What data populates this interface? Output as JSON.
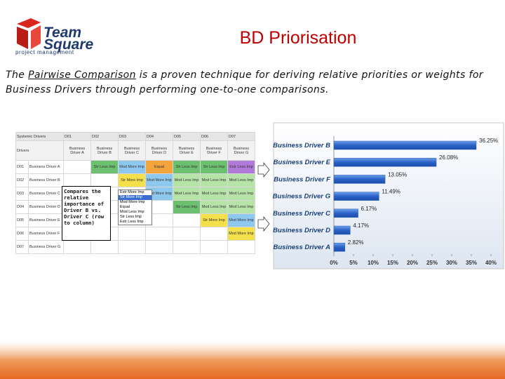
{
  "logo": {
    "line1": "Team",
    "line2": "Square",
    "tagline": "project management"
  },
  "title": "BD Priorisation",
  "intro": {
    "before": "The ",
    "link": "Pairwise Comparison",
    "after": " is a proven technique for deriving relative priorities or weights for Business Drivers through performing one-to-one comparisons."
  },
  "matrix": {
    "corner": "Systemic Drivers",
    "row_header": "Drivers",
    "codes": [
      "D01",
      "D02",
      "D03",
      "D04",
      "D05",
      "D06",
      "D07"
    ],
    "drivers": [
      "Business Driver A",
      "Business Driver B",
      "Business Driver C",
      "Business Driver D",
      "Business Driver E",
      "Business Driver F",
      "Business Driver G"
    ],
    "cells": [
      [
        null,
        {
          "text": "Str Less Imp",
          "color": "#6cc070"
        },
        {
          "text": "Mod More Imp",
          "color": "#8fc8ee"
        },
        {
          "text": "Equal",
          "color": "#f4a43c"
        },
        {
          "text": "Str Less Imp",
          "color": "#6cc070"
        },
        {
          "text": "Str Less Imp",
          "color": "#6cc070"
        },
        {
          "text": "Extr Less Imp",
          "color": "#b07ad8"
        }
      ],
      [
        null,
        null,
        {
          "text": "Str More Imp",
          "color": "#f3e04a"
        },
        {
          "text": "Mod More Imp",
          "color": "#8fc8ee"
        },
        {
          "text": "Mod Less Imp",
          "color": "#b6e3a8"
        },
        {
          "text": "Mod Less Imp",
          "color": "#b6e3a8"
        },
        {
          "text": "Mod Less Imp",
          "color": "#b6e3a8"
        }
      ],
      [
        null,
        null,
        null,
        {
          "text": "Mod More Imp",
          "color": "#8fc8ee"
        },
        {
          "text": "Mod Less Imp",
          "color": "#b6e3a8"
        },
        {
          "text": "Mod Less Imp",
          "color": "#b6e3a8"
        },
        {
          "text": "Mod Less Imp",
          "color": "#b6e3a8"
        }
      ],
      [
        null,
        null,
        null,
        null,
        {
          "text": "Str Less Imp",
          "color": "#6cc070"
        },
        {
          "text": "Mod Less Imp",
          "color": "#b6e3a8"
        },
        {
          "text": "Mod Less Imp",
          "color": "#b6e3a8"
        }
      ],
      [
        null,
        null,
        null,
        null,
        null,
        {
          "text": "Str More Imp",
          "color": "#f3e04a"
        },
        {
          "text": "Mod More Imp",
          "color": "#8fc8ee"
        }
      ],
      [
        null,
        null,
        null,
        null,
        null,
        null,
        {
          "text": "Mod More Imp",
          "color": "#f3e04a"
        }
      ],
      [
        null,
        null,
        null,
        null,
        null,
        null,
        null
      ]
    ]
  },
  "dropdown": {
    "items": [
      "Extr More Imp",
      "Str More Imp",
      "Mod More Imp",
      "Equal",
      "Mod Less Imp",
      "Str Less Imp",
      "Extr Less Imp"
    ]
  },
  "callout": "Compares the relative importance of Driver B vs. Driver C (row to column)",
  "chart_data": {
    "type": "bar",
    "orientation": "horizontal",
    "categories": [
      "Business Driver B",
      "Business Driver E",
      "Business Driver F",
      "Business Driver G",
      "Business Driver C",
      "Business Driver D",
      "Business Driver A"
    ],
    "values": [
      36.25,
      26.08,
      13.05,
      11.49,
      6.17,
      4.17,
      2.82
    ],
    "value_labels": [
      "36.25%",
      "26.08%",
      "13.05%",
      "11.49%",
      "6.17%",
      "4.17%",
      "2.82%"
    ],
    "color": "#2a62c9",
    "xlim": [
      0,
      40
    ],
    "xticks": [
      {
        "value": 0,
        "label": "0%"
      },
      {
        "value": 5,
        "label": "5%"
      },
      {
        "value": 10,
        "label": "10%"
      },
      {
        "value": 15,
        "label": "15%"
      },
      {
        "value": 20,
        "label": "20%"
      },
      {
        "value": 25,
        "label": "25%"
      },
      {
        "value": 30,
        "label": "30%"
      },
      {
        "value": 35,
        "label": "35%"
      },
      {
        "value": 40,
        "label": "40%"
      }
    ]
  }
}
